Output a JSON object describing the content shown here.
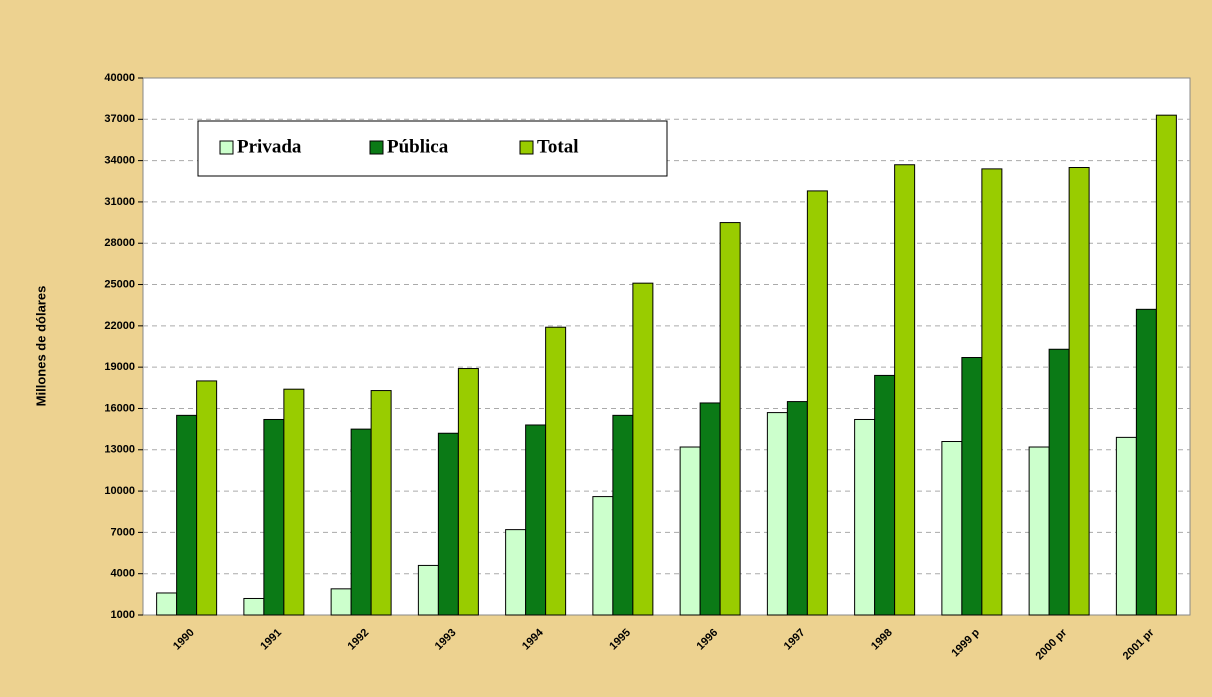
{
  "chart_data": {
    "type": "bar",
    "y_label": "Millones de dólares",
    "categories": [
      "1990",
      "1991",
      "1992",
      "1993",
      "1994",
      "1995",
      "1996",
      "1997",
      "1998",
      "1999 p",
      "2000 pr",
      "2001 pr"
    ],
    "series": [
      {
        "name": "Privada",
        "color": "#ccffcc",
        "values": [
          2600,
          2200,
          2900,
          4600,
          7200,
          9600,
          13200,
          15700,
          15200,
          13600,
          13200,
          13900
        ]
      },
      {
        "name": "Pública",
        "color": "#0b7a16",
        "values": [
          15500,
          15200,
          14500,
          14200,
          14800,
          15500,
          16400,
          16500,
          18400,
          19700,
          20300,
          23200
        ]
      },
      {
        "name": "Total",
        "color": "#99cc00",
        "values": [
          18000,
          17400,
          17300,
          18900,
          21900,
          25100,
          29500,
          31800,
          33700,
          33400,
          33500,
          37300
        ]
      }
    ],
    "ylim": [
      1000,
      40000
    ],
    "yticks": [
      1000,
      4000,
      7000,
      10000,
      13000,
      16000,
      19000,
      22000,
      25000,
      28000,
      31000,
      34000,
      37000,
      40000
    ],
    "grid": true,
    "legend": "top-left"
  }
}
